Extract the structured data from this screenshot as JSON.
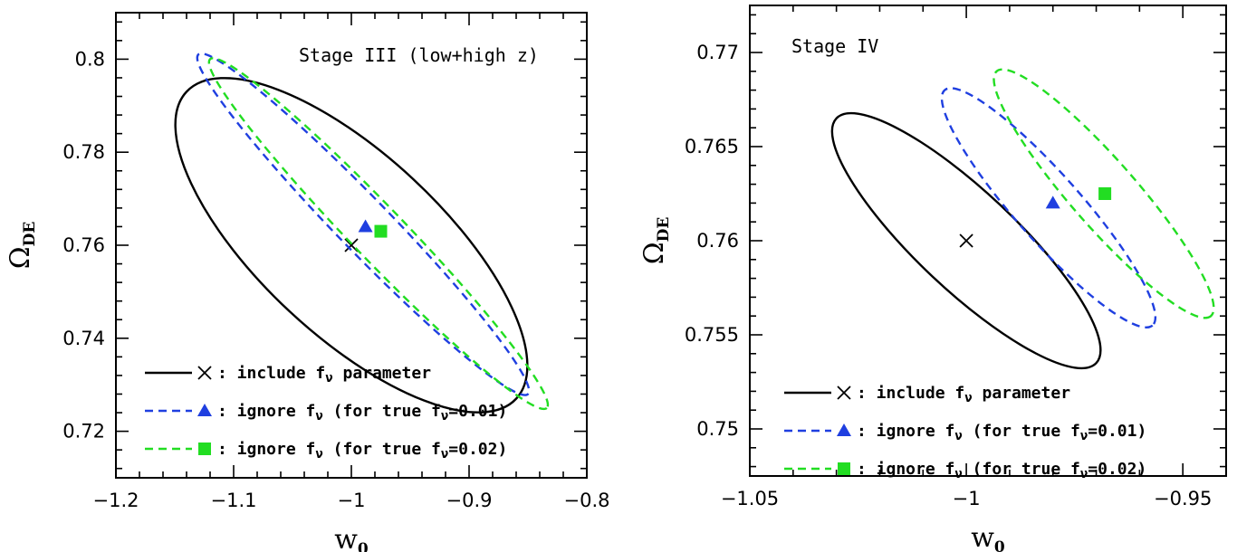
{
  "chart_data": [
    {
      "type": "scatter",
      "title": "Stage III (low+high z)",
      "xlabel": "w",
      "xlabel_sub": "0",
      "ylabel": "Ω",
      "ylabel_sub": "DE",
      "xlim": [
        -1.2,
        -0.8
      ],
      "ylim": [
        0.71,
        0.81
      ],
      "xticks": [
        -1.2,
        -1.1,
        -1.0,
        -0.9,
        -0.8
      ],
      "xtick_labels": [
        "−1.2",
        "−1.1",
        "−1",
        "−0.9",
        "−0.8"
      ],
      "yticks": [
        0.72,
        0.74,
        0.76,
        0.78,
        0.8
      ],
      "ytick_labels": [
        "0.72",
        "0.74",
        "0.76",
        "0.78",
        "0.8"
      ],
      "series": [
        {
          "name": "include f_ν parameter",
          "color": "#000000",
          "dash": "solid",
          "marker": "cross",
          "center": [
            -1.0,
            0.76
          ],
          "ellipse": [
            [
              -1.14,
              0.793
            ],
            [
              -0.86,
              0.727
            ]
          ],
          "minor_halfwidth": 0.025
        },
        {
          "name": "ignore f_ν (for true f_ν=0.01)",
          "color": "#1f3fe0",
          "dash": "dashed",
          "marker": "triangle",
          "center": [
            -0.988,
            0.764
          ],
          "ellipse": [
            [
              -1.13,
              0.801
            ],
            [
              -0.85,
              0.728
            ]
          ],
          "minor_halfwidth": 0.0065
        },
        {
          "name": "ignore f_ν (for true f_ν=0.02)",
          "color": "#22dd22",
          "dash": "dashed",
          "marker": "square",
          "center": [
            -0.975,
            0.763
          ],
          "ellipse": [
            [
              -1.12,
              0.8
            ],
            [
              -0.834,
              0.725
            ]
          ],
          "minor_halfwidth": 0.0065
        }
      ],
      "legend_position": "bottom-left"
    },
    {
      "type": "scatter",
      "title": "Stage IV",
      "xlabel": "w",
      "xlabel_sub": "0",
      "ylabel": "Ω",
      "ylabel_sub": "DE",
      "xlim": [
        -1.05,
        -0.94
      ],
      "ylim": [
        0.7475,
        0.7725
      ],
      "xticks": [
        -1.05,
        -1.0,
        -0.95
      ],
      "xtick_labels": [
        "−1.05",
        "−1",
        "−0.95"
      ],
      "yticks": [
        0.75,
        0.755,
        0.76,
        0.765,
        0.77
      ],
      "ytick_labels": [
        "0.75",
        "0.755",
        "0.76",
        "0.765",
        "0.77"
      ],
      "series": [
        {
          "name": "include f_ν parameter",
          "color": "#000000",
          "dash": "solid",
          "marker": "cross",
          "center": [
            -1.0,
            0.76
          ],
          "ellipse": [
            [
              -1.03,
              0.7665
            ],
            [
              -0.97,
              0.7535
            ]
          ],
          "minor_halfwidth": 0.0032
        },
        {
          "name": "ignore f_ν (for true f_ν=0.01)",
          "color": "#1f3fe0",
          "dash": "dashed",
          "marker": "triangle",
          "center": [
            -0.98,
            0.762
          ],
          "ellipse": [
            [
              -1.005,
              0.768
            ],
            [
              -0.957,
              0.7555
            ]
          ],
          "minor_halfwidth": 0.0022
        },
        {
          "name": "ignore f_ν (for true f_ν=0.02)",
          "color": "#22dd22",
          "dash": "dashed",
          "marker": "square",
          "center": [
            -0.968,
            0.7625
          ],
          "ellipse": [
            [
              -0.993,
              0.769
            ],
            [
              -0.9435,
              0.756
            ]
          ],
          "minor_halfwidth": 0.0022
        }
      ],
      "legend_position": "bottom-left"
    }
  ],
  "legend": [
    {
      "label_parts": [
        ": include f",
        "ν",
        " parameter"
      ]
    },
    {
      "label_parts": [
        ": ignore f",
        "ν",
        " (for true f",
        "ν",
        "=0.01)"
      ]
    },
    {
      "label_parts": [
        ": ignore f",
        "ν",
        " (for true f",
        "ν",
        "=0.02)"
      ]
    }
  ]
}
